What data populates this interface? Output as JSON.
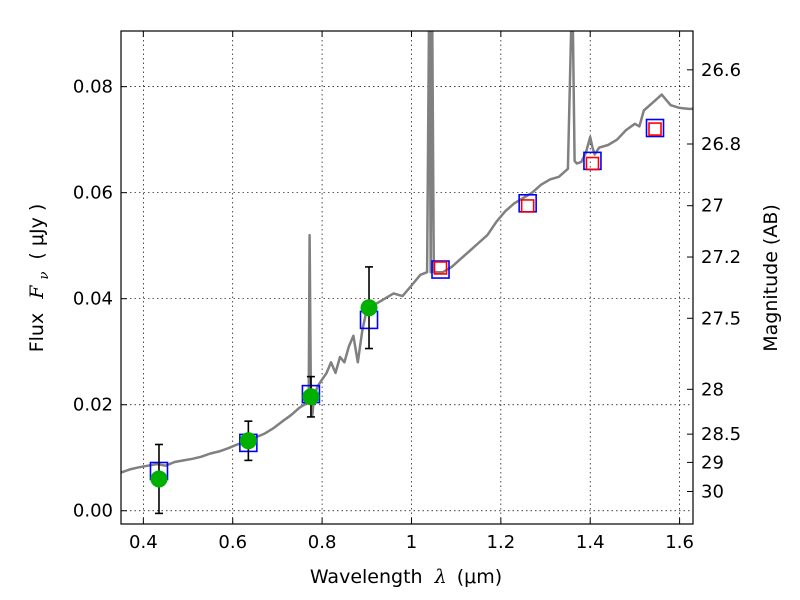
{
  "chart_data": {
    "type": "line",
    "xlabel_text": "Wavelength",
    "xlabel_symbol": "λ",
    "xlabel_unit": "(μm)",
    "ylabel_text": "Flux",
    "ylabel_symbol": "F",
    "ylabel_subscript": "ν",
    "ylabel_unit": "( μJy )",
    "y2label": "Magnitude (AB)",
    "xlim": [
      0.35,
      1.63
    ],
    "ylim": [
      -0.0025,
      0.0905
    ],
    "grid": true,
    "x_ticks": [
      0.4,
      0.6,
      0.8,
      1.0,
      1.2,
      1.4,
      1.6
    ],
    "x_tick_labels": [
      "0.4",
      "0.6",
      "0.8",
      "1",
      "1.2",
      "1.4",
      "1.6"
    ],
    "y_ticks": [
      0.0,
      0.02,
      0.04,
      0.06,
      0.08
    ],
    "y_tick_labels": [
      "0.00",
      "0.02",
      "0.04",
      "0.06",
      "0.08"
    ],
    "y2_ticks": [
      26.6,
      26.8,
      27.0,
      27.2,
      27.5,
      28.0,
      28.5,
      29.0,
      30.0
    ],
    "y2_tick_labels": [
      "26.6",
      "26.8",
      "27",
      "27.2",
      "27.5",
      "28",
      "28.5",
      "29",
      "30"
    ],
    "series": [
      {
        "kind": "line",
        "color": "#808080",
        "x": [
          0.35,
          0.37,
          0.39,
          0.41,
          0.43,
          0.45,
          0.47,
          0.49,
          0.51,
          0.53,
          0.55,
          0.57,
          0.59,
          0.61,
          0.63,
          0.65,
          0.67,
          0.69,
          0.71,
          0.73,
          0.75,
          0.77,
          0.772,
          0.775,
          0.778,
          0.782,
          0.79,
          0.81,
          0.82,
          0.83,
          0.84,
          0.85,
          0.86,
          0.87,
          0.88,
          0.89,
          0.9,
          0.92,
          0.94,
          0.96,
          0.98,
          1.0,
          1.02,
          1.035,
          1.04,
          1.043,
          1.046,
          1.05,
          1.07,
          1.09,
          1.11,
          1.13,
          1.15,
          1.17,
          1.19,
          1.21,
          1.23,
          1.25,
          1.27,
          1.29,
          1.31,
          1.33,
          1.35,
          1.36,
          1.365,
          1.37,
          1.38,
          1.39,
          1.4,
          1.405,
          1.41,
          1.42,
          1.44,
          1.46,
          1.48,
          1.5,
          1.51,
          1.52,
          1.54,
          1.56,
          1.57,
          1.58,
          1.6,
          1.62,
          1.63
        ],
        "y": [
          0.0072,
          0.0078,
          0.0082,
          0.0085,
          0.0088,
          0.0085,
          0.0092,
          0.0095,
          0.0098,
          0.0102,
          0.0108,
          0.0112,
          0.0118,
          0.0125,
          0.013,
          0.0138,
          0.0145,
          0.0155,
          0.0168,
          0.018,
          0.0195,
          0.0205,
          0.052,
          0.0215,
          0.018,
          0.0215,
          0.0235,
          0.026,
          0.028,
          0.026,
          0.029,
          0.028,
          0.031,
          0.033,
          0.028,
          0.034,
          0.038,
          0.039,
          0.04,
          0.041,
          0.0405,
          0.0425,
          0.0445,
          0.045,
          0.1,
          0.045,
          0.1,
          0.045,
          0.045,
          0.046,
          0.0475,
          0.049,
          0.0505,
          0.052,
          0.0545,
          0.0565,
          0.058,
          0.059,
          0.06,
          0.0615,
          0.0625,
          0.063,
          0.0645,
          0.1,
          0.066,
          0.0655,
          0.0658,
          0.0675,
          0.0705,
          0.0685,
          0.0672,
          0.0685,
          0.069,
          0.07,
          0.0718,
          0.073,
          0.0725,
          0.0755,
          0.077,
          0.0785,
          0.0775,
          0.0765,
          0.076,
          0.0758,
          0.0758
        ]
      },
      {
        "kind": "square",
        "color": "#0000ff",
        "x": [
          0.435,
          0.635,
          0.775,
          0.905,
          1.065,
          1.26,
          1.405,
          1.545
        ],
        "y": [
          0.0075,
          0.0128,
          0.022,
          0.036,
          0.0455,
          0.058,
          0.066,
          0.0722
        ]
      },
      {
        "kind": "square",
        "color": "#ff0000",
        "x": [
          1.065,
          1.26,
          1.405,
          1.545
        ],
        "y": [
          0.0458,
          0.0575,
          0.0655,
          0.072
        ]
      },
      {
        "kind": "point",
        "color": "#00b000",
        "x": [
          0.435,
          0.635,
          0.775,
          0.905
        ],
        "y": [
          0.006,
          0.0132,
          0.0215,
          0.0383
        ],
        "yerr": [
          0.0065,
          0.0037,
          0.0038,
          0.0077
        ]
      }
    ]
  }
}
